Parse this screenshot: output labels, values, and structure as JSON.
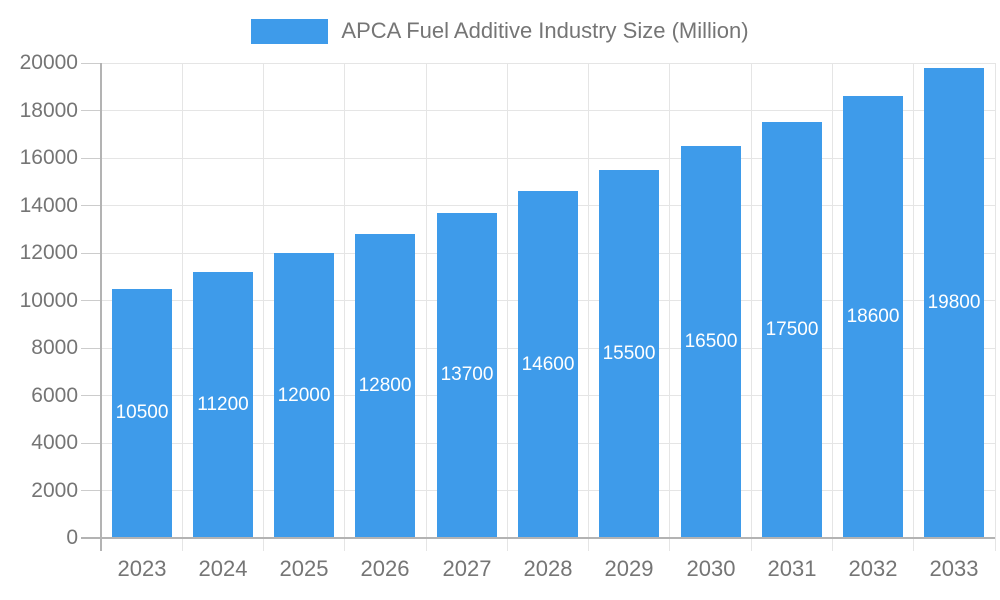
{
  "chart_data": {
    "type": "bar",
    "title": "APCA Fuel Additive Industry Size (Million)",
    "legend_entries": [
      "APCA Fuel Additive Industry Size (Million)"
    ],
    "legend_position": "top-center",
    "categories": [
      "2023",
      "2024",
      "2025",
      "2026",
      "2027",
      "2028",
      "2029",
      "2030",
      "2031",
      "2032",
      "2033"
    ],
    "series": [
      {
        "name": "APCA Fuel Additive Industry Size (Million)",
        "values": [
          10500,
          11200,
          12000,
          12800,
          13700,
          14600,
          15500,
          16500,
          17500,
          18600,
          19800
        ]
      }
    ],
    "value_labels_shown": true,
    "value_label_position": "inside-center",
    "xlabel": "",
    "ylabel": "",
    "ylim": [
      0,
      20000
    ],
    "ytick_step": 2000,
    "yticks": [
      0,
      2000,
      4000,
      6000,
      8000,
      10000,
      12000,
      14000,
      16000,
      18000,
      20000
    ],
    "grid": "horizontal-and-vertical",
    "colors": {
      "bar": "#3E9BEA",
      "value_label": "#FFFFFF",
      "axis_text": "#757575",
      "legend_text": "#757575",
      "gridline": "#E5E5E5",
      "axis_line": "#B3B3B3",
      "tick": "#CCCCCC",
      "background": "#FFFFFF"
    }
  }
}
